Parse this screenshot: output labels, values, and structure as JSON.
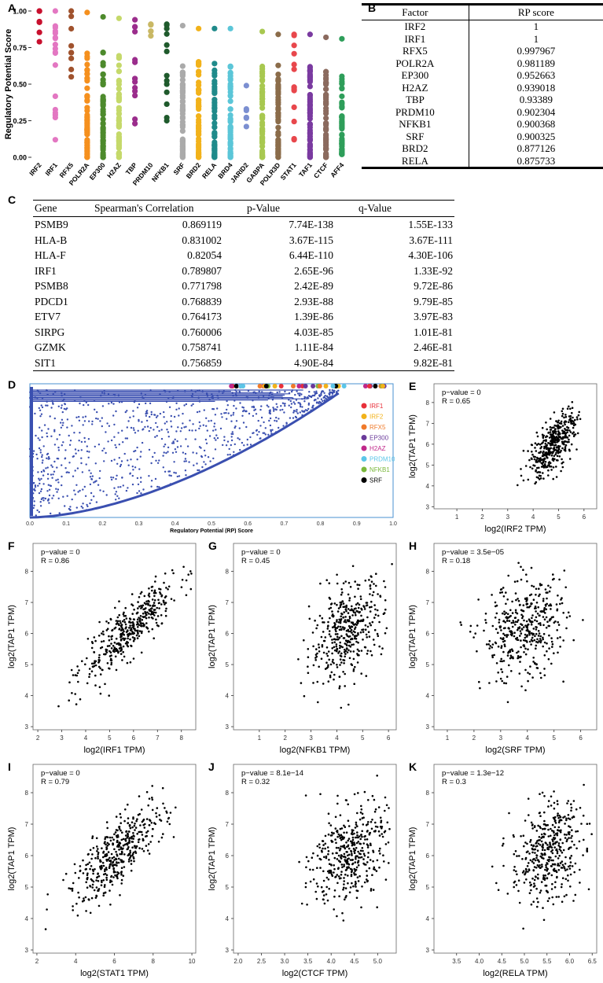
{
  "panels": {
    "A": "A",
    "B": "B",
    "C": "C",
    "D": "D",
    "E": "E",
    "F": "F",
    "G": "G",
    "H": "H",
    "I": "I",
    "J": "J",
    "K": "K"
  },
  "chart_data": [
    {
      "id": "A",
      "type": "scatter",
      "ylabel": "Regulatory Potential Score",
      "ylim": [
        0,
        1
      ],
      "yticks": [
        "0.00",
        "0.25",
        "0.50",
        "0.75",
        "1.00"
      ],
      "categories": [
        "IRF2",
        "IRF1",
        "RFX5",
        "POLR2A",
        "EP300",
        "H2AZ",
        "TBP",
        "PRDM10",
        "NFKB1",
        "SRF",
        "BRD2",
        "RELA",
        "BRD4",
        "JARID2",
        "GABPA",
        "POLR3D",
        "STAT1",
        "TAF1",
        "CTCF",
        "AFF4"
      ],
      "colors": [
        "#c8102e",
        "#e377c2",
        "#a0522d",
        "#f5901e",
        "#4d8a2c",
        "#c5d96a",
        "#9b2d8c",
        "#c9b864",
        "#1f5a2c",
        "#aaaaaa",
        "#f2b21a",
        "#1f8a8a",
        "#5bc6d8",
        "#7b8fd1",
        "#a8c850",
        "#8b6c4a",
        "#e8474c",
        "#7a3aa0",
        "#8b6a5e",
        "#2e9e5a"
      ],
      "ranges": [
        [
          0.79,
          1.0
        ],
        [
          0.12,
          1.0
        ],
        [
          0.55,
          1.0
        ],
        [
          0.0,
          0.99
        ],
        [
          0.0,
          0.96
        ],
        [
          0.0,
          0.95
        ],
        [
          0.23,
          0.94
        ],
        [
          0.83,
          0.91
        ],
        [
          0.25,
          0.91
        ],
        [
          0.0,
          0.9
        ],
        [
          0.0,
          0.88
        ],
        [
          0.0,
          0.88
        ],
        [
          0.0,
          0.88
        ],
        [
          0.21,
          0.49
        ],
        [
          0.0,
          0.86
        ],
        [
          0.0,
          0.84
        ],
        [
          0.12,
          0.84
        ],
        [
          0.0,
          0.84
        ],
        [
          0.0,
          0.82
        ],
        [
          0.02,
          0.81
        ]
      ]
    },
    {
      "id": "D",
      "type": "scatter",
      "xlabel": "Regulatory Potential (RP) Score",
      "xlim": [
        0,
        1
      ],
      "xticks": [
        "0.0",
        "0.1",
        "0.2",
        "0.3",
        "0.4",
        "0.5",
        "0.6",
        "0.7",
        "0.8",
        "0.9",
        "1.0"
      ],
      "legend": [
        {
          "name": "IRF1",
          "color": "#e8303a"
        },
        {
          "name": "IRF2",
          "color": "#f2b21a"
        },
        {
          "name": "RFX5",
          "color": "#f07a2a"
        },
        {
          "name": "EP300",
          "color": "#6a3a9a"
        },
        {
          "name": "H2AZ",
          "color": "#c0288a"
        },
        {
          "name": "PRDM10",
          "color": "#5bc6e8"
        },
        {
          "name": "NFKB1",
          "color": "#7ab83c"
        },
        {
          "name": "SRF",
          "color": "#000000"
        }
      ]
    },
    {
      "id": "E",
      "type": "scatter",
      "pvalue": "p−value = 0",
      "r": "R = 0.65",
      "xlabel": "log2(IRF2 TPM)",
      "ylabel": "log2(TAP1 TPM)",
      "xlim": [
        0.1,
        6.5
      ],
      "ylim": [
        2.9,
        8.9
      ],
      "xticks": [
        1,
        2,
        3,
        4,
        5,
        6
      ],
      "yticks": [
        3,
        4,
        5,
        6,
        7,
        8
      ],
      "center": [
        4.8,
        6.0
      ],
      "spread": [
        0.45,
        0.75
      ],
      "rho": 0.65
    },
    {
      "id": "F",
      "type": "scatter",
      "pvalue": "p−value = 0",
      "r": "R = 0.86",
      "xlabel": "log2(IRF1 TPM)",
      "ylabel": "log2(TAP1 TPM)",
      "xlim": [
        1.8,
        8.6
      ],
      "ylim": [
        2.9,
        8.9
      ],
      "xticks": [
        2,
        3,
        4,
        5,
        6,
        7,
        8
      ],
      "yticks": [
        3,
        4,
        5,
        6,
        7,
        8
      ],
      "center": [
        5.8,
        6.1
      ],
      "spread": [
        1.0,
        0.8
      ],
      "rho": 0.86
    },
    {
      "id": "G",
      "type": "scatter",
      "pvalue": "p−value = 0",
      "r": "R = 0.45",
      "xlabel": "log2(NFKB1 TPM)",
      "ylabel": "log2(TAP1 TPM)",
      "xlim": [
        0.0,
        6.3
      ],
      "ylim": [
        2.9,
        8.9
      ],
      "xticks": [
        1,
        2,
        3,
        4,
        5,
        6
      ],
      "yticks": [
        3,
        4,
        5,
        6,
        7,
        8
      ],
      "center": [
        4.4,
        6.1
      ],
      "spread": [
        0.7,
        0.8
      ],
      "rho": 0.45
    },
    {
      "id": "H",
      "type": "scatter",
      "pvalue": "p−value = 3.5e−05",
      "r": "R = 0.18",
      "xlabel": "log2(SRF TPM)",
      "ylabel": "log2(TAP1 TPM)",
      "xlim": [
        0.5,
        6.6
      ],
      "ylim": [
        2.9,
        8.9
      ],
      "xticks": [
        1,
        2,
        3,
        4,
        5,
        6
      ],
      "yticks": [
        3,
        4,
        5,
        6,
        7,
        8
      ],
      "center": [
        3.9,
        6.1
      ],
      "spread": [
        0.8,
        0.8
      ],
      "rho": 0.18
    },
    {
      "id": "I",
      "type": "scatter",
      "pvalue": "p−value = 0",
      "r": "R = 0.79",
      "xlabel": "log2(STAT1 TPM)",
      "ylabel": "log2(TAP1 TPM)",
      "xlim": [
        1.8,
        10.2
      ],
      "ylim": [
        2.9,
        8.9
      ],
      "xticks": [
        2,
        4,
        6,
        8,
        10
      ],
      "yticks": [
        3,
        4,
        5,
        6,
        7,
        8
      ],
      "center": [
        6.2,
        6.1
      ],
      "spread": [
        1.2,
        0.8
      ],
      "rho": 0.79
    },
    {
      "id": "J",
      "type": "scatter",
      "pvalue": "p−value = 8.1e−14",
      "r": "R = 0.32",
      "xlabel": "log2(CTCF TPM)",
      "ylabel": "log2(TAP1 TPM)",
      "xlim": [
        1.9,
        5.4
      ],
      "ylim": [
        2.9,
        8.9
      ],
      "xticks": [
        "2.0",
        "2.5",
        "3.0",
        "3.5",
        "4.0",
        "4.5",
        "5.0"
      ],
      "yticks": [
        3,
        4,
        5,
        6,
        7,
        8
      ],
      "center": [
        4.4,
        6.1
      ],
      "spread": [
        0.4,
        0.8
      ],
      "rho": 0.32
    },
    {
      "id": "K",
      "type": "scatter",
      "pvalue": "p−value = 1.3e−12",
      "r": "R = 0.3",
      "xlabel": "log2(RELA TPM)",
      "ylabel": "log2(TAP1 TPM)",
      "xlim": [
        3.0,
        6.6
      ],
      "ylim": [
        2.9,
        8.9
      ],
      "xticks": [
        "3.5",
        "4.0",
        "4.5",
        "5.0",
        "5.5",
        "6.0",
        "6.5"
      ],
      "yticks": [
        3,
        4,
        5,
        6,
        7,
        8
      ],
      "center": [
        5.5,
        6.1
      ],
      "spread": [
        0.4,
        0.8
      ],
      "rho": 0.3
    }
  ],
  "tableB": {
    "headers": [
      "Factor",
      "RP  score"
    ],
    "rows": [
      [
        "IRF2",
        "1"
      ],
      [
        "IRF1",
        "1"
      ],
      [
        "RFX5",
        "0.997967"
      ],
      [
        "POLR2A",
        "0.981189"
      ],
      [
        "EP300",
        "0.952663"
      ],
      [
        "H2AZ",
        "0.939018"
      ],
      [
        "TBP",
        "0.93389"
      ],
      [
        "PRDM10",
        "0.902304"
      ],
      [
        "NFKB1",
        "0.900368"
      ],
      [
        "SRF",
        "0.900325"
      ],
      [
        "BRD2",
        "0.877126"
      ],
      [
        "RELA",
        "0.875733"
      ]
    ]
  },
  "tableC": {
    "headers": [
      "Gene",
      "Spearman's Correlation",
      "p-Value",
      "q-Value"
    ],
    "rows": [
      [
        "PSMB9",
        "0.869119",
        "7.74E-138",
        "1.55E-133"
      ],
      [
        "HLA-B",
        "0.831002",
        "3.67E-115",
        "3.67E-111"
      ],
      [
        "HLA-F",
        "0.82054",
        "6.44E-110",
        "4.30E-106"
      ],
      [
        "IRF1",
        "0.789807",
        "2.65E-96",
        "1.33E-92"
      ],
      [
        "PSMB8",
        "0.771798",
        "2.42E-89",
        "9.72E-86"
      ],
      [
        "PDCD1",
        "0.768839",
        "2.93E-88",
        "9.79E-85"
      ],
      [
        "ETV7",
        "0.764173",
        "1.39E-86",
        "3.97E-83"
      ],
      [
        "SIRPG",
        "0.760006",
        "4.03E-85",
        "1.01E-81"
      ],
      [
        "GZMK",
        "0.758741",
        "1.11E-84",
        "2.46E-81"
      ],
      [
        "SIT1",
        "0.756859",
        "4.90E-84",
        "9.82E-81"
      ]
    ]
  }
}
